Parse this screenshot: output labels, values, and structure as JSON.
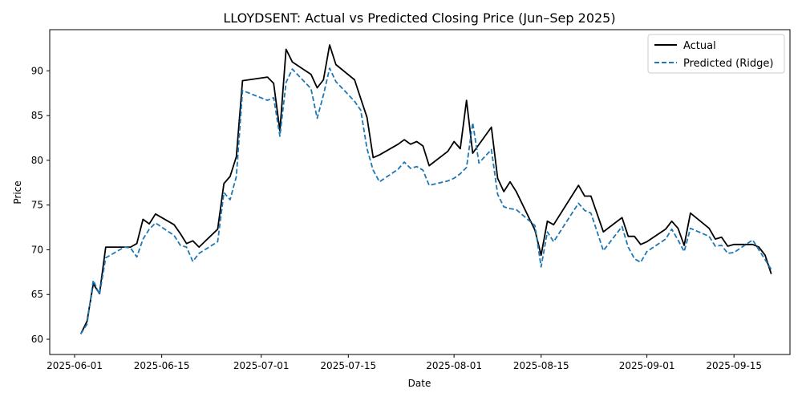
{
  "chart_data": {
    "type": "line",
    "title": "LLOYDSENT: Actual vs Predicted Closing Price (Jun–Sep 2025)",
    "xlabel": "Date",
    "ylabel": "Price",
    "ylim": [
      58.3,
      94.6
    ],
    "xlim": [
      "2025-05-28",
      "2025-09-24"
    ],
    "x_ticks": [
      "2025-06-01",
      "2025-06-15",
      "2025-07-01",
      "2025-07-15",
      "2025-08-01",
      "2025-08-15",
      "2025-09-01",
      "2025-09-15"
    ],
    "y_ticks": [
      60,
      65,
      70,
      75,
      80,
      85,
      90
    ],
    "grid": false,
    "legend": "top-right",
    "colors": {
      "actual": "#000000",
      "predicted": "#1f77b4"
    },
    "series": [
      {
        "name": "Actual",
        "style": "solid",
        "points": [
          [
            "2025-06-02",
            60.6
          ],
          [
            "2025-06-03",
            62.0
          ],
          [
            "2025-06-04",
            66.2
          ],
          [
            "2025-06-05",
            65.1
          ],
          [
            "2025-06-06",
            70.3
          ],
          [
            "2025-06-09",
            70.3
          ],
          [
            "2025-06-10",
            70.3
          ],
          [
            "2025-06-11",
            70.7
          ],
          [
            "2025-06-12",
            73.4
          ],
          [
            "2025-06-13",
            72.9
          ],
          [
            "2025-06-14",
            74.0
          ],
          [
            "2025-06-17",
            72.8
          ],
          [
            "2025-06-18",
            71.8
          ],
          [
            "2025-06-19",
            70.7
          ],
          [
            "2025-06-20",
            71.0
          ],
          [
            "2025-06-21",
            70.3
          ],
          [
            "2025-06-24",
            72.3
          ],
          [
            "2025-06-25",
            77.4
          ],
          [
            "2025-06-26",
            78.2
          ],
          [
            "2025-06-27",
            80.4
          ],
          [
            "2025-06-28",
            88.9
          ],
          [
            "2025-07-02",
            89.3
          ],
          [
            "2025-07-03",
            88.6
          ],
          [
            "2025-07-04",
            83.3
          ],
          [
            "2025-07-05",
            92.4
          ],
          [
            "2025-07-06",
            91.0
          ],
          [
            "2025-07-09",
            89.6
          ],
          [
            "2025-07-10",
            88.1
          ],
          [
            "2025-07-11",
            89.0
          ],
          [
            "2025-07-12",
            92.9
          ],
          [
            "2025-07-13",
            90.7
          ],
          [
            "2025-07-16",
            89.0
          ],
          [
            "2025-07-17",
            86.9
          ],
          [
            "2025-07-18",
            84.8
          ],
          [
            "2025-07-19",
            80.3
          ],
          [
            "2025-07-20",
            80.6
          ],
          [
            "2025-07-23",
            81.8
          ],
          [
            "2025-07-24",
            82.3
          ],
          [
            "2025-07-25",
            81.8
          ],
          [
            "2025-07-26",
            82.1
          ],
          [
            "2025-07-27",
            81.6
          ],
          [
            "2025-07-28",
            79.4
          ],
          [
            "2025-07-31",
            81.0
          ],
          [
            "2025-08-01",
            82.1
          ],
          [
            "2025-08-02",
            81.3
          ],
          [
            "2025-08-03",
            86.7
          ],
          [
            "2025-08-04",
            80.8
          ],
          [
            "2025-08-07",
            83.7
          ],
          [
            "2025-08-08",
            78.0
          ],
          [
            "2025-08-09",
            76.5
          ],
          [
            "2025-08-10",
            77.6
          ],
          [
            "2025-08-11",
            76.5
          ],
          [
            "2025-08-14",
            72.2
          ],
          [
            "2025-08-15",
            69.4
          ],
          [
            "2025-08-16",
            73.2
          ],
          [
            "2025-08-17",
            72.8
          ],
          [
            "2025-08-21",
            77.2
          ],
          [
            "2025-08-22",
            76.0
          ],
          [
            "2025-08-23",
            76.0
          ],
          [
            "2025-08-24",
            74.0
          ],
          [
            "2025-08-25",
            72.0
          ],
          [
            "2025-08-28",
            73.6
          ],
          [
            "2025-08-29",
            71.5
          ],
          [
            "2025-08-30",
            71.5
          ],
          [
            "2025-08-31",
            70.6
          ],
          [
            "2025-09-01",
            70.9
          ],
          [
            "2025-09-04",
            72.3
          ],
          [
            "2025-09-05",
            73.2
          ],
          [
            "2025-09-06",
            72.4
          ],
          [
            "2025-09-07",
            70.5
          ],
          [
            "2025-09-08",
            74.1
          ],
          [
            "2025-09-11",
            72.4
          ],
          [
            "2025-09-12",
            71.2
          ],
          [
            "2025-09-13",
            71.4
          ],
          [
            "2025-09-14",
            70.4
          ],
          [
            "2025-09-15",
            70.6
          ],
          [
            "2025-09-18",
            70.6
          ],
          [
            "2025-09-19",
            70.3
          ],
          [
            "2025-09-20",
            69.4
          ],
          [
            "2025-09-21",
            67.3
          ]
        ]
      },
      {
        "name": "Predicted (Ridge)",
        "style": "dashed",
        "points": [
          [
            "2025-06-02",
            60.6
          ],
          [
            "2025-06-03",
            61.7
          ],
          [
            "2025-06-04",
            66.6
          ],
          [
            "2025-06-05",
            65.0
          ],
          [
            "2025-06-06",
            69.1
          ],
          [
            "2025-06-09",
            70.3
          ],
          [
            "2025-06-10",
            70.2
          ],
          [
            "2025-06-11",
            69.2
          ],
          [
            "2025-06-12",
            71.2
          ],
          [
            "2025-06-13",
            72.3
          ],
          [
            "2025-06-14",
            73.0
          ],
          [
            "2025-06-17",
            71.6
          ],
          [
            "2025-06-18",
            70.5
          ],
          [
            "2025-06-19",
            70.3
          ],
          [
            "2025-06-20",
            68.7
          ],
          [
            "2025-06-21",
            69.6
          ],
          [
            "2025-06-24",
            70.9
          ],
          [
            "2025-06-25",
            76.4
          ],
          [
            "2025-06-26",
            75.6
          ],
          [
            "2025-06-27",
            78.2
          ],
          [
            "2025-06-28",
            87.8
          ],
          [
            "2025-07-02",
            86.7
          ],
          [
            "2025-07-03",
            87.0
          ],
          [
            "2025-07-04",
            82.7
          ],
          [
            "2025-07-05",
            88.7
          ],
          [
            "2025-07-06",
            90.2
          ],
          [
            "2025-07-09",
            88.0
          ],
          [
            "2025-07-10",
            84.7
          ],
          [
            "2025-07-11",
            87.3
          ],
          [
            "2025-07-12",
            90.3
          ],
          [
            "2025-07-13",
            88.8
          ],
          [
            "2025-07-16",
            86.6
          ],
          [
            "2025-07-17",
            85.6
          ],
          [
            "2025-07-18",
            81.3
          ],
          [
            "2025-07-19",
            78.9
          ],
          [
            "2025-07-20",
            77.6
          ],
          [
            "2025-07-23",
            79.0
          ],
          [
            "2025-07-24",
            79.8
          ],
          [
            "2025-07-25",
            79.1
          ],
          [
            "2025-07-26",
            79.3
          ],
          [
            "2025-07-27",
            78.9
          ],
          [
            "2025-07-28",
            77.2
          ],
          [
            "2025-07-31",
            77.7
          ],
          [
            "2025-08-01",
            78.0
          ],
          [
            "2025-08-02",
            78.5
          ],
          [
            "2025-08-03",
            79.2
          ],
          [
            "2025-08-04",
            84.2
          ],
          [
            "2025-08-05",
            79.7
          ],
          [
            "2025-08-07",
            81.2
          ],
          [
            "2025-08-08",
            76.2
          ],
          [
            "2025-08-09",
            74.8
          ],
          [
            "2025-08-10",
            74.6
          ],
          [
            "2025-08-11",
            74.5
          ],
          [
            "2025-08-14",
            72.7
          ],
          [
            "2025-08-15",
            68.1
          ],
          [
            "2025-08-16",
            72.0
          ],
          [
            "2025-08-17",
            70.9
          ],
          [
            "2025-08-21",
            75.2
          ],
          [
            "2025-08-22",
            74.4
          ],
          [
            "2025-08-23",
            74.1
          ],
          [
            "2025-08-24",
            72.0
          ],
          [
            "2025-08-25",
            69.9
          ],
          [
            "2025-08-28",
            72.6
          ],
          [
            "2025-08-29",
            70.3
          ],
          [
            "2025-08-30",
            69.0
          ],
          [
            "2025-08-31",
            68.6
          ],
          [
            "2025-09-01",
            69.8
          ],
          [
            "2025-09-04",
            71.2
          ],
          [
            "2025-09-05",
            72.3
          ],
          [
            "2025-09-06",
            71.1
          ],
          [
            "2025-09-07",
            69.8
          ],
          [
            "2025-09-08",
            72.4
          ],
          [
            "2025-09-11",
            71.5
          ],
          [
            "2025-09-12",
            70.4
          ],
          [
            "2025-09-13",
            70.5
          ],
          [
            "2025-09-14",
            69.6
          ],
          [
            "2025-09-15",
            69.7
          ],
          [
            "2025-09-18",
            71.1
          ],
          [
            "2025-09-19",
            70.0
          ],
          [
            "2025-09-20",
            68.9
          ],
          [
            "2025-09-21",
            67.8
          ]
        ]
      }
    ]
  }
}
